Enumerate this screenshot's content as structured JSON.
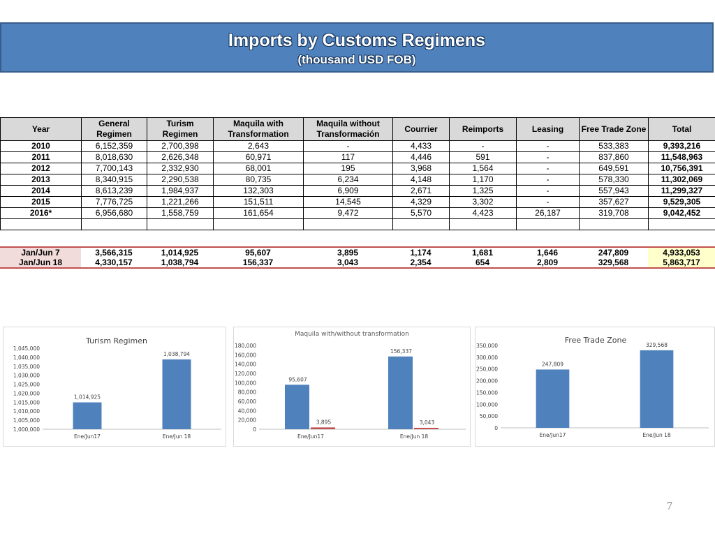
{
  "title": "Imports by Customs Regimens",
  "subtitle": "(thousand USD FOB)",
  "table": {
    "headers": [
      "Year",
      "General Regimen",
      "Turism Regimen",
      "Maquila with Transformation",
      "Maquila without Transformación",
      "Courrier",
      "Reimports",
      "Leasing",
      "Free Trade Zone",
      "Total"
    ],
    "rows": [
      [
        "2010",
        "6,152,359",
        "2,700,398",
        "2,643",
        "-",
        "4,433",
        "-",
        "-",
        "533,383",
        "9,393,216"
      ],
      [
        "2011",
        "8,018,630",
        "2,626,348",
        "60,971",
        "117",
        "4,446",
        "591",
        "-",
        "837,860",
        "11,548,963"
      ],
      [
        "2012",
        "7,700,143",
        "2,332,930",
        "68,001",
        "195",
        "3,968",
        "1,564",
        "-",
        "649,591",
        "10,756,391"
      ],
      [
        "2013",
        "8,340,915",
        "2,290,538",
        "80,735",
        "6,234",
        "4,148",
        "1,170",
        "-",
        "578,330",
        "11,302,069"
      ],
      [
        "2014",
        "8,613,239",
        "1,984,937",
        "132,303",
        "6,909",
        "2,671",
        "1,325",
        "-",
        "557,943",
        "11,299,327"
      ],
      [
        "2015",
        "7,776,725",
        "1,221,266",
        "151,511",
        "14,545",
        "4,329",
        "3,302",
        "-",
        "357,627",
        "9,529,305"
      ],
      [
        "2016*",
        "6,956,680",
        "1,558,759",
        "161,654",
        "9,472",
        "5,570",
        "4,423",
        "26,187",
        "319,708",
        "9,042,452"
      ]
    ]
  },
  "summary": {
    "rows": [
      [
        "Jan/Jun 7",
        "3,566,315",
        "1,014,925",
        "95,607",
        "3,895",
        "1,174",
        "1,681",
        "1,646",
        "247,809",
        "4,933,053"
      ],
      [
        "Jan/Jun 18",
        "4,330,157",
        "1,038,794",
        "156,337",
        "3,043",
        "2,354",
        "654",
        "2,809",
        "329,568",
        "5,863,717"
      ]
    ]
  },
  "chart_data": [
    {
      "type": "bar",
      "title": "Turism Regimen",
      "categories": [
        "Ene/Jun17",
        "Ene/Jun 18"
      ],
      "values": [
        1014925,
        1038794
      ],
      "value_labels": [
        "1,014,925",
        "1,038,794"
      ],
      "ylim": [
        1000000,
        1045000
      ],
      "yticks": [
        1000000,
        1005000,
        1010000,
        1015000,
        1020000,
        1025000,
        1030000,
        1035000,
        1040000,
        1045000
      ],
      "ytick_labels": [
        "1,000,000",
        "1,005,000",
        "1,010,000",
        "1,015,000",
        "1,020,000",
        "1,025,000",
        "1,030,000",
        "1,035,000",
        "1,040,000",
        "1,045,000"
      ],
      "colors": [
        "#4f81bd"
      ],
      "grid": false
    },
    {
      "type": "bar",
      "title": "Maquila with/without transformation",
      "categories": [
        "Ene/Jun17",
        "Ene/Jun 18"
      ],
      "series": [
        {
          "values": [
            95607,
            156337
          ],
          "labels": [
            "95,607",
            "156,337"
          ],
          "color": "#4f81bd"
        },
        {
          "values": [
            3895,
            3043
          ],
          "labels": [
            "3,895",
            "3,043"
          ],
          "color": "#c0504d"
        }
      ],
      "ylim": [
        0,
        180000
      ],
      "yticks": [
        0,
        20000,
        40000,
        60000,
        80000,
        100000,
        120000,
        140000,
        160000,
        180000
      ],
      "ytick_labels": [
        "0",
        "20,000",
        "40,000",
        "60,000",
        "80,000",
        "100,000",
        "120,000",
        "140,000",
        "160,000",
        "180,000"
      ],
      "grid": false
    },
    {
      "type": "bar",
      "title": "Free Trade Zone",
      "categories": [
        "Ene/Jun17",
        "Ene/Jun 18"
      ],
      "values": [
        247809,
        329568
      ],
      "value_labels": [
        "247,809",
        "329,568"
      ],
      "ylim": [
        0,
        350000
      ],
      "yticks": [
        0,
        50000,
        100000,
        150000,
        200000,
        250000,
        300000,
        350000
      ],
      "ytick_labels": [
        "0",
        "50,000",
        "100,000",
        "150,000",
        "200,000",
        "250,000",
        "300,000",
        "350,000"
      ],
      "colors": [
        "#4f81bd"
      ],
      "grid": false
    }
  ],
  "page_number": "7"
}
